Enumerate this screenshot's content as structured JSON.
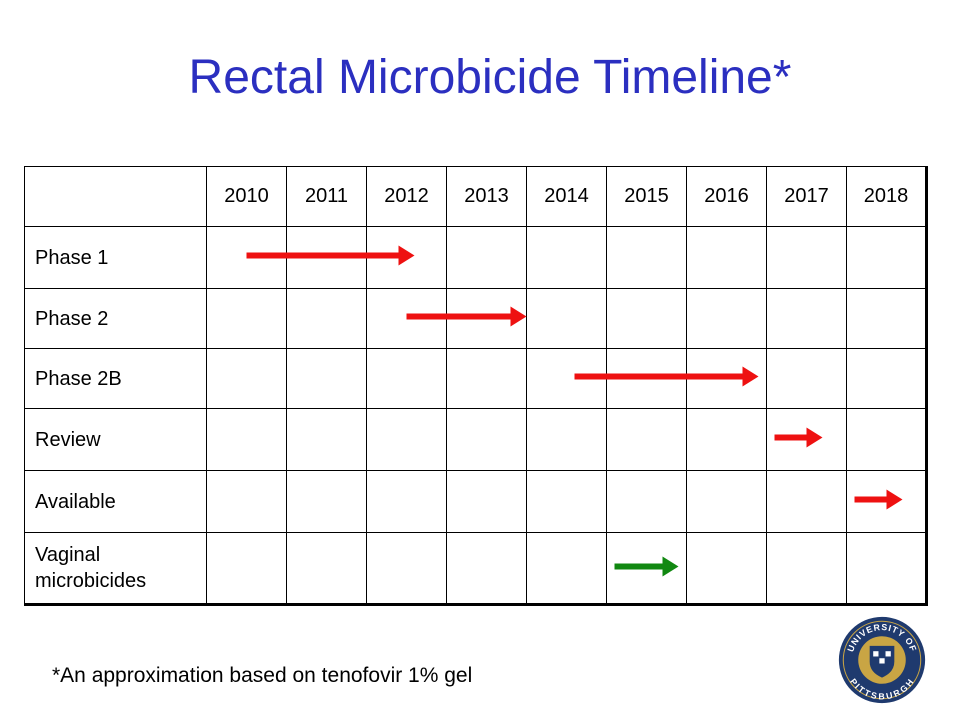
{
  "title": "Rectal Microbicide Timeline*",
  "table": {
    "years": [
      "2010",
      "2011",
      "2012",
      "2013",
      "2014",
      "2015",
      "2016",
      "2017",
      "2018"
    ],
    "rows": [
      {
        "label": "Phase 1",
        "start": 2010.5,
        "end": 2012.6,
        "color": "#ee1111"
      },
      {
        "label": "Phase 2",
        "start": 2012.5,
        "end": 2014.0,
        "color": "#ee1111"
      },
      {
        "label": "Phase 2B",
        "start": 2014.6,
        "end": 2016.9,
        "color": "#ee1111"
      },
      {
        "label": "Review",
        "start": 2017.1,
        "end": 2017.7,
        "color": "#ee1111"
      },
      {
        "label": "Available",
        "start": 2018.1,
        "end": 2018.7,
        "color": "#ee1111"
      },
      {
        "label": "Vaginal microbicides",
        "start": 2015.1,
        "end": 2015.9,
        "color": "#118811"
      }
    ]
  },
  "footnote": "*An approximation based on tenofovir 1% gel",
  "logo": {
    "name": "university-of-pittsburgh-seal",
    "text_top": "UNIVERSITY OF",
    "text_bottom": "PITTSBURGH",
    "navy": "#1f3a6e",
    "gold": "#c9a544"
  }
}
